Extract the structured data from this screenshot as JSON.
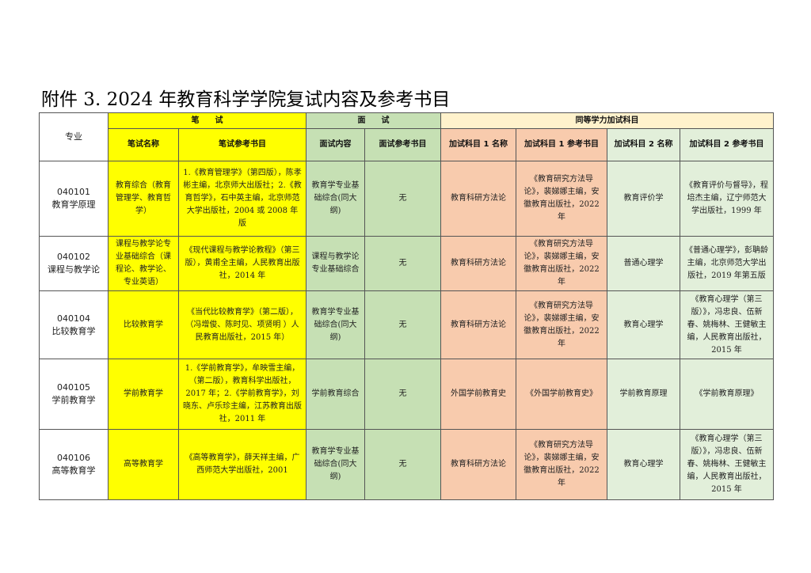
{
  "title": "附件 3.   2024 年教育科学学院复试内容及参考书目",
  "colors": {
    "written": "#ffff00",
    "interview": "#c6e0b4",
    "extra1": "#f8cbad",
    "extra2": "#e2efda",
    "extra_header": "#fff2cc"
  },
  "header": {
    "major": "专业",
    "written_group": "笔　　试",
    "interview_group": "面　　试",
    "extra_group": "同等学力加试科目",
    "columns": [
      "笔试名称",
      "笔试参考书目",
      "面试内容",
      "面试参考书目",
      "加试科目 1 名称",
      "加试科目 1 参考书目",
      "加试科目 2 名称",
      "加试科目 2 参考书目"
    ]
  },
  "rows": [
    {
      "code": "040101",
      "name": "教育学原理",
      "written": "教育综合（教育管理学、教育哲学）",
      "written_ref": "1.《教育管理学》（第四版），陈孝彬主编，北京师大出版社；2.《教育哲学》，石中英主编，北京师范大学出版社，2004 或 2008 年版",
      "interview": "教育学专业基础综合(同大纲)",
      "interview_ref": "无",
      "extra1": "教育科研方法论",
      "extra1_ref": "《教育研究方法导论》，裴娣娜主编，安徽教育出版社，2022 年",
      "extra2": "教育评价学",
      "extra2_ref": "《教育评价与督导》，程培杰主编，辽宁师范大学出版社，1999 年"
    },
    {
      "code": "040102",
      "name": "课程与教学论",
      "written": "课程与教学论专业基础综合（课程论、教学论、专业英语）",
      "written_ref": "《现代课程与教学论教程》（第三版），黄甫全主编，人民教育出版社，2014 年",
      "interview": "课程与教学论专业基础综合",
      "interview_ref": "无",
      "extra1": "教育科研方法论",
      "extra1_ref": "《教育研究方法导论》，裴娣娜主编，安徽教育出版社，2022 年",
      "extra2": "普通心理学",
      "extra2_ref": "《普通心理学》，彭聃龄主编，北京师范大学出版社，2019 年第五版"
    },
    {
      "code": "040104",
      "name": "比较教育学",
      "written": "比较教育学",
      "written_ref": "《当代比较教育学》（第二版），（冯增俊、陈时见、项贤明 ）人民教育出版社，2015 年）",
      "interview": "教育学专业基础综合(同大纲)",
      "interview_ref": "无",
      "extra1": "教育科研方法论",
      "extra1_ref": "《教育研究方法导论》，裴娣娜主编，安徽教育出版社，2022 年",
      "extra2": "教育心理学",
      "extra2_ref": "《教育心理学（第三版）》，冯忠良、伍新春、姚梅林、王健敏主编，人民教育出版社，2015 年"
    },
    {
      "code": "040105",
      "name": "学前教育学",
      "written": "学前教育学",
      "written_ref": "1.《学前教育学》，牟映雪主编，（第二版），教育科学出版社，2017 年；2.《学前教育学》，刘晓东、卢乐珍主编，江苏教育出版社，2011 年",
      "interview": "学前教育综合",
      "interview_ref": "无",
      "extra1": "外国学前教育史",
      "extra1_ref": "《外国学前教育史》",
      "extra2": "学前教育原理",
      "extra2_ref": "《学前教育原理》"
    },
    {
      "code": "040106",
      "name": "高等教育学",
      "written": "高等教育学",
      "written_ref": "《高等教育学》，薛天祥主编，广西师范大学出版社，2001",
      "interview": "教育学专业基础综合(同大纲)",
      "interview_ref": "无",
      "extra1": "教育科研方法论",
      "extra1_ref": "《教育研究方法导论》，裴娣娜主编，安徽教育出版社，2022 年",
      "extra2": "教育心理学",
      "extra2_ref": "《教育心理学（第三版）》，冯忠良、伍新春、姚梅林、王健敏主编，人民教育出版社，2015 年"
    }
  ]
}
